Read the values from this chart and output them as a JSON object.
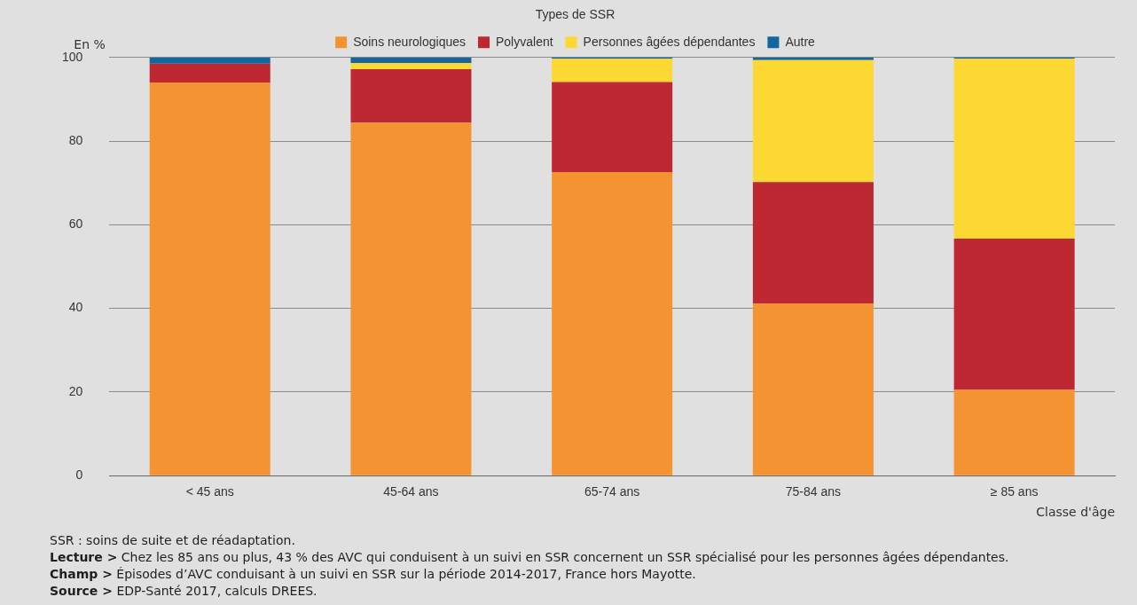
{
  "chart_data": {
    "type": "bar",
    "stacked": true,
    "legend": "top",
    "legend_title": "Types de SSR",
    "grid": "y",
    "ylabel": "En %",
    "xlabel": "Classe d'âge",
    "categories": [
      "< 45 ans",
      "45-64 ans",
      "65-74 ans",
      "75-84 ans",
      "≥ 85 ans"
    ],
    "ylim": [
      0,
      100
    ],
    "yticks": [
      0,
      20,
      40,
      60,
      80,
      100
    ],
    "series": [
      {
        "name": "Soins neurologiques",
        "color": "#f39331",
        "values": [
          94,
          84.4,
          72.6,
          41.2,
          20.5
        ]
      },
      {
        "name": "Polyvalent",
        "color": "#be2833",
        "values": [
          4.5,
          12.8,
          21.5,
          29,
          36.2
        ]
      },
      {
        "name": "Personnes âgées dépendantes",
        "color": "#fdd833",
        "values": [
          0,
          1.5,
          5.6,
          29.2,
          43
        ]
      },
      {
        "name": "Autre",
        "color": "#12679f",
        "values": [
          1.5,
          1.3,
          0.3,
          0.6,
          0.3
        ]
      }
    ],
    "annotations": [
      "SSR : soins de suite et de réadaptation.",
      "Lecture > Chez les 85 ans ou plus, 43 % des AVC qui conduisent à un suivi en SSR concernent un SSR spécialisé pour les personnes âgées dépendantes.",
      "Champ > Épisodes d’AVC conduisant à un suivi en SSR sur la période 2014-2017, France hors Mayotte.",
      "Source > EDP-Santé 2017, calculs DREES."
    ]
  }
}
